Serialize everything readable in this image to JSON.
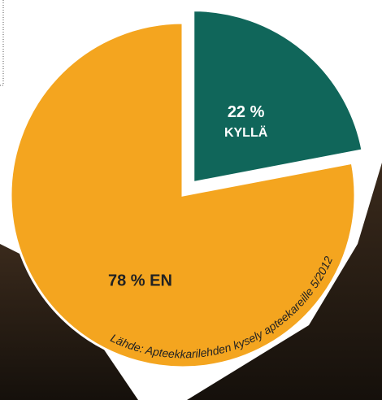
{
  "chart_data": {
    "type": "pie",
    "categories": [
      "KYLLÄ",
      "EN"
    ],
    "values": [
      22,
      78
    ],
    "value_labels": [
      "22 %",
      "78 %"
    ],
    "colors": [
      "#10665a",
      "#f4a51f"
    ],
    "exploded": [
      true,
      false
    ],
    "source": "Lähde: Apteekkarilehden kysely apteekareille 5/2012"
  }
}
